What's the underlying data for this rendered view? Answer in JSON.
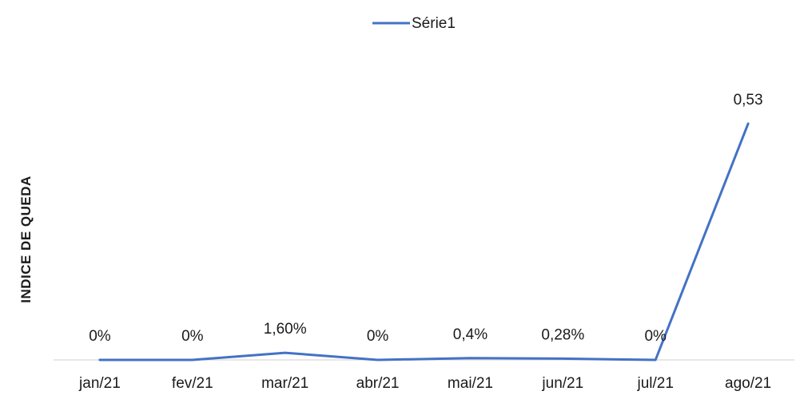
{
  "chart_data": {
    "type": "line",
    "title": "",
    "xlabel": "",
    "ylabel": "INDICE DE QUEDA",
    "categories": [
      "jan/21",
      "fev/21",
      "mar/21",
      "abr/21",
      "mai/21",
      "jun/21",
      "jul/21",
      "ago/21"
    ],
    "series": [
      {
        "name": "Série1",
        "values": [
          0,
          0,
          0.016,
          0,
          0.004,
          0.0028,
          0,
          0.53
        ],
        "data_labels": [
          "0%",
          "0%",
          "1,60%",
          "0%",
          "0,4%",
          "0,28%",
          "0%",
          "0,53"
        ],
        "color": "#4472C4"
      }
    ],
    "ylim": [
      0,
      0.58
    ],
    "grid": false,
    "legend_position": "top"
  }
}
